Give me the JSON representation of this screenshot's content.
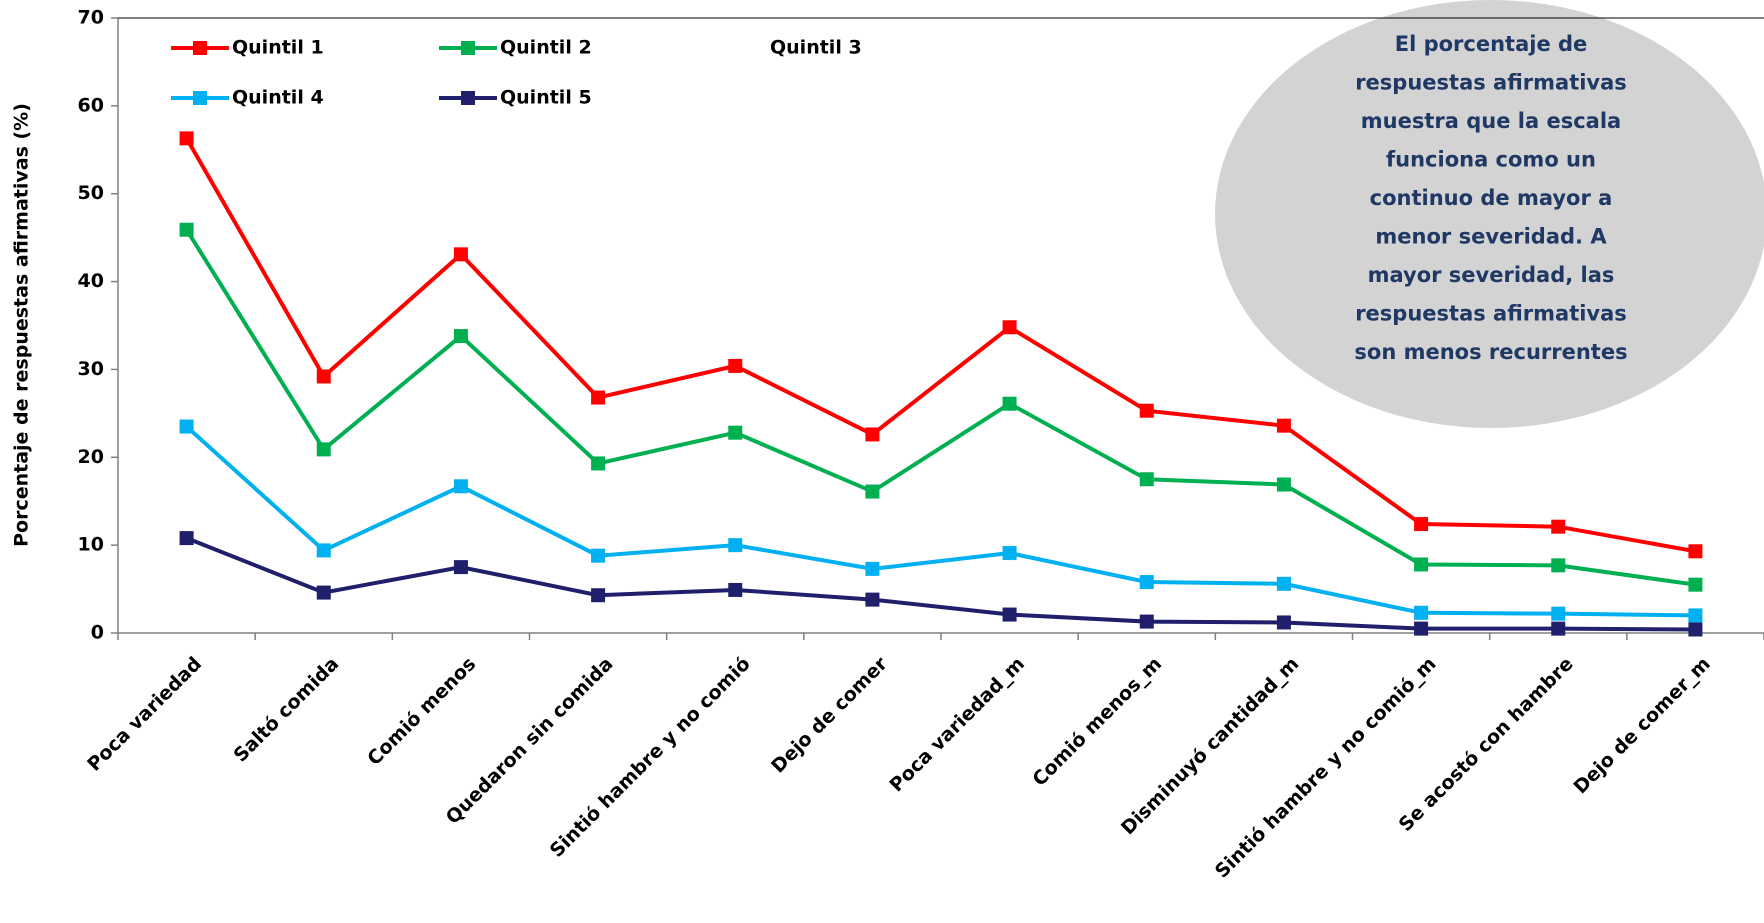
{
  "chart_data": {
    "type": "line",
    "y_label": "Porcentaje de respuestas  afirmativas (%)",
    "categories": [
      "Poca variedad",
      "Saltó comida",
      "Comió menos",
      "Quedaron sin comida",
      "Sintió hambre y no comió",
      "Dejo de comer",
      "Poca variedad_m",
      "Comió menos_m",
      "Disminuyó cantidad_m",
      "Sintió hambre y no comió_m",
      "Se acostó con hambre",
      "Dejo de comer_m"
    ],
    "series": [
      {
        "name": "Quintil 1",
        "color": "#ff0000",
        "values": [
          56.3,
          29.2,
          43.1,
          26.8,
          30.4,
          22.6,
          34.8,
          25.3,
          23.6,
          12.4,
          12.1,
          9.3
        ]
      },
      {
        "name": "Quintil 2",
        "color": "#00b050",
        "values": [
          45.9,
          20.9,
          33.8,
          19.3,
          22.8,
          16.1,
          26.1,
          17.5,
          16.9,
          7.8,
          7.7,
          5.5
        ]
      },
      {
        "name": "Quintil 3",
        "color": "#ffffff",
        "values": [
          null,
          null,
          null,
          null,
          null,
          null,
          null,
          null,
          null,
          null,
          null,
          null
        ]
      },
      {
        "name": "Quintil 4",
        "color": "#00b0f0",
        "values": [
          23.5,
          9.4,
          16.7,
          8.8,
          10.0,
          7.3,
          9.1,
          5.8,
          5.6,
          2.3,
          2.2,
          2.0
        ]
      },
      {
        "name": "Quintil 5",
        "color": "#1f1f6b",
        "values": [
          10.8,
          4.6,
          7.5,
          4.3,
          4.9,
          3.8,
          2.1,
          1.3,
          1.2,
          0.5,
          0.5,
          0.4
        ]
      }
    ],
    "ylim": [
      0,
      70
    ],
    "yticks": [
      0,
      10,
      20,
      30,
      40,
      50,
      60,
      70
    ],
    "annotation": [
      "El porcentaje de",
      "respuestas  afirmativas",
      "muestra que la escala",
      "funciona como un",
      "continuo de mayor a",
      "menor severidad. A",
      "mayor severidad, las",
      "respuestas afirmativas",
      "son menos recurrentes"
    ]
  }
}
